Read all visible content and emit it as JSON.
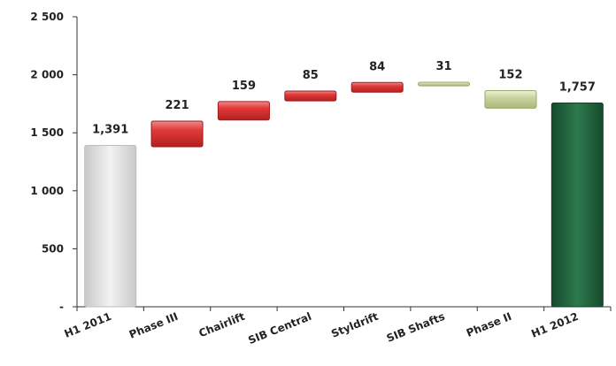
{
  "chart_data": {
    "type": "bar",
    "subtype": "waterfall",
    "title": "",
    "xlabel": "",
    "ylabel": "",
    "categories": [
      "H1 2011",
      "Phase III",
      "Chairlift",
      "SIB Central",
      "Styldrift",
      "SIB Shafts",
      "Phase II",
      "H1 2012"
    ],
    "values": [
      1391,
      221,
      159,
      85,
      84,
      31,
      152,
      1757
    ],
    "value_labels": [
      "1,391",
      "221",
      "159",
      "85",
      "84",
      "31",
      "152",
      "1,757"
    ],
    "bar_kind": [
      "total",
      "decrease",
      "decrease",
      "decrease",
      "decrease",
      "increase",
      "increase",
      "total"
    ],
    "bar_ranges": [
      [
        0,
        1391
      ],
      [
        1380,
        1601
      ],
      [
        1610,
        1769
      ],
      [
        1775,
        1860
      ],
      [
        1850,
        1934
      ],
      [
        1905,
        1936
      ],
      [
        1712,
        1864
      ],
      [
        0,
        1757
      ]
    ],
    "ylim": [
      0,
      2500
    ],
    "yticks": [
      0,
      500,
      1000,
      1500,
      2000,
      2500
    ],
    "ytick_labels": [
      "-",
      "500",
      "1 000",
      "1 500",
      "2 000",
      "2 500"
    ],
    "grid": false,
    "legend": "none",
    "colors": {
      "start_total": "#d9d9d9",
      "end_total": "#1f5e3b",
      "decrease": "#e03a3a",
      "increase": "#c8d4a0",
      "axis": "#333333"
    }
  }
}
